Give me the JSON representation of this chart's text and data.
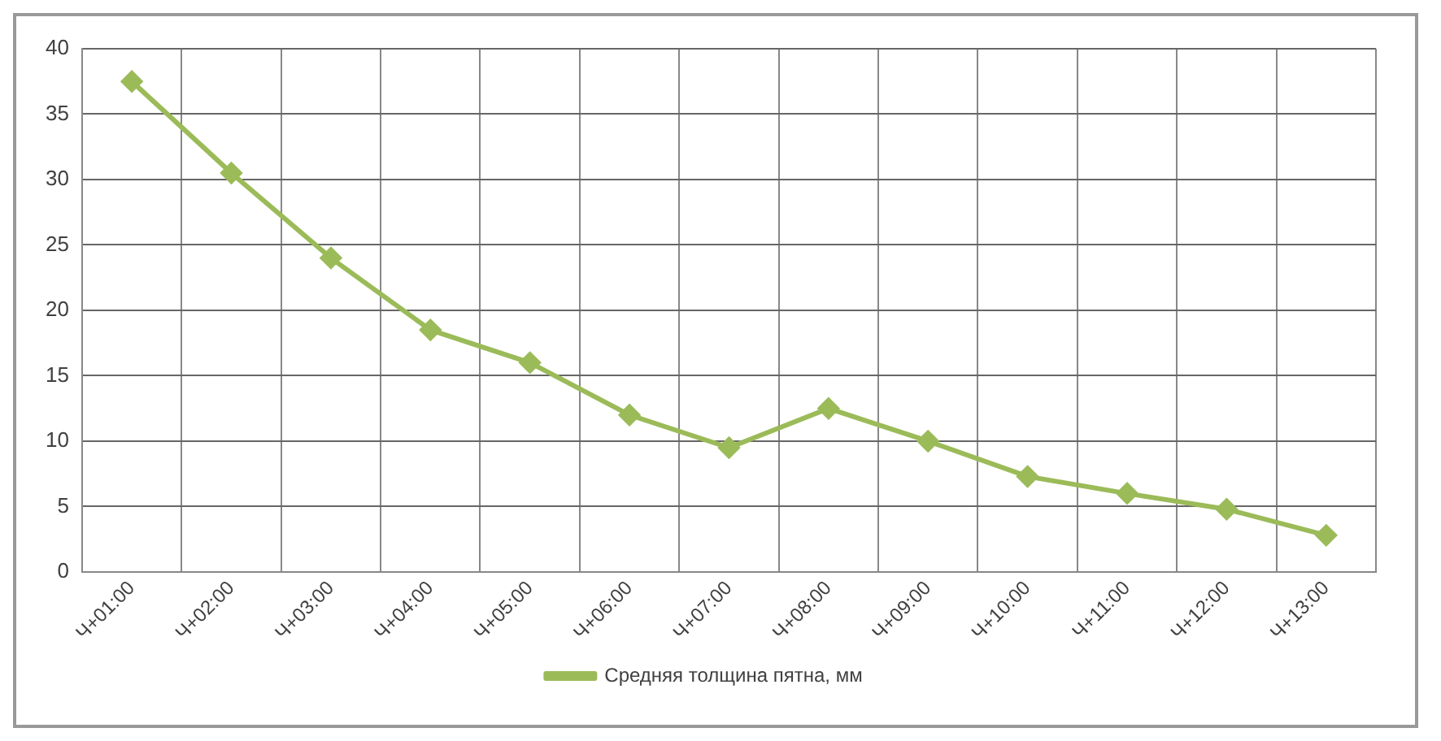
{
  "chart_data": {
    "type": "line",
    "categories": [
      "Ч+01:00",
      "Ч+02:00",
      "Ч+03:00",
      "Ч+04:00",
      "Ч+05:00",
      "Ч+06:00",
      "Ч+07:00",
      "Ч+08:00",
      "Ч+09:00",
      "Ч+10:00",
      "Ч+11:00",
      "Ч+12:00",
      "Ч+13:00"
    ],
    "series": [
      {
        "name": "Средняя толщина пятна, мм",
        "color": "#9bbb59",
        "values": [
          37.5,
          30.5,
          24,
          18.5,
          16,
          12,
          9.5,
          12.5,
          10,
          7.3,
          6,
          4.8,
          2.8
        ]
      }
    ],
    "ylim": [
      0,
      40
    ],
    "yticks": [
      0,
      5,
      10,
      15,
      20,
      25,
      30,
      35,
      40
    ],
    "grid": true,
    "legend": "bottom",
    "marker": "diamond",
    "line_style": "solid"
  }
}
